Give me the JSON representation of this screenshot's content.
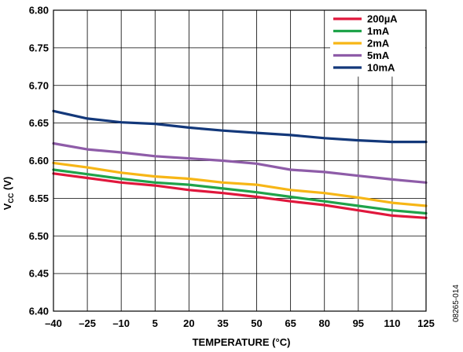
{
  "chart_data": {
    "type": "line",
    "xlabel": "TEMPERATURE (°C)",
    "ylabel": "V",
    "ylabel_sub": "CC",
    "ylabel_unit": " (V)",
    "figure_id": "08265-014",
    "xlim": [
      -40,
      125
    ],
    "ylim": [
      6.4,
      6.8
    ],
    "x_ticks": [
      -40,
      -25,
      -10,
      5,
      20,
      35,
      50,
      65,
      80,
      95,
      110,
      125
    ],
    "x_tick_labels": [
      "–40",
      "–25",
      "–10",
      "5",
      "20",
      "35",
      "50",
      "65",
      "80",
      "95",
      "110",
      "125"
    ],
    "y_ticks": [
      6.4,
      6.45,
      6.5,
      6.55,
      6.6,
      6.65,
      6.7,
      6.75,
      6.8
    ],
    "y_tick_labels": [
      "6.40",
      "6.45",
      "6.50",
      "6.55",
      "6.60",
      "6.65",
      "6.70",
      "6.75",
      "6.80"
    ],
    "grid": true,
    "legend_position": "top-right",
    "x": [
      -40,
      -25,
      -10,
      5,
      20,
      35,
      50,
      65,
      80,
      95,
      110,
      125
    ],
    "series": [
      {
        "name": "200µA",
        "color": "#e0173c",
        "values": [
          6.583,
          6.577,
          6.571,
          6.567,
          6.561,
          6.557,
          6.552,
          6.546,
          6.541,
          6.534,
          6.527,
          6.524
        ]
      },
      {
        "name": "1mA",
        "color": "#1fa34a",
        "values": [
          6.588,
          6.582,
          6.576,
          6.571,
          6.568,
          6.563,
          6.558,
          6.552,
          6.546,
          6.54,
          6.534,
          6.53
        ]
      },
      {
        "name": "2mA",
        "color": "#f7b616",
        "values": [
          6.597,
          6.591,
          6.584,
          6.579,
          6.576,
          6.571,
          6.568,
          6.561,
          6.557,
          6.551,
          6.544,
          6.54
        ]
      },
      {
        "name": "5mA",
        "color": "#8e5ca8",
        "values": [
          6.623,
          6.615,
          6.611,
          6.606,
          6.603,
          6.6,
          6.596,
          6.588,
          6.585,
          6.58,
          6.575,
          6.571
        ]
      },
      {
        "name": "10mA",
        "color": "#13387a",
        "values": [
          6.666,
          6.656,
          6.651,
          6.649,
          6.644,
          6.64,
          6.637,
          6.634,
          6.63,
          6.627,
          6.625,
          6.625
        ]
      }
    ]
  }
}
